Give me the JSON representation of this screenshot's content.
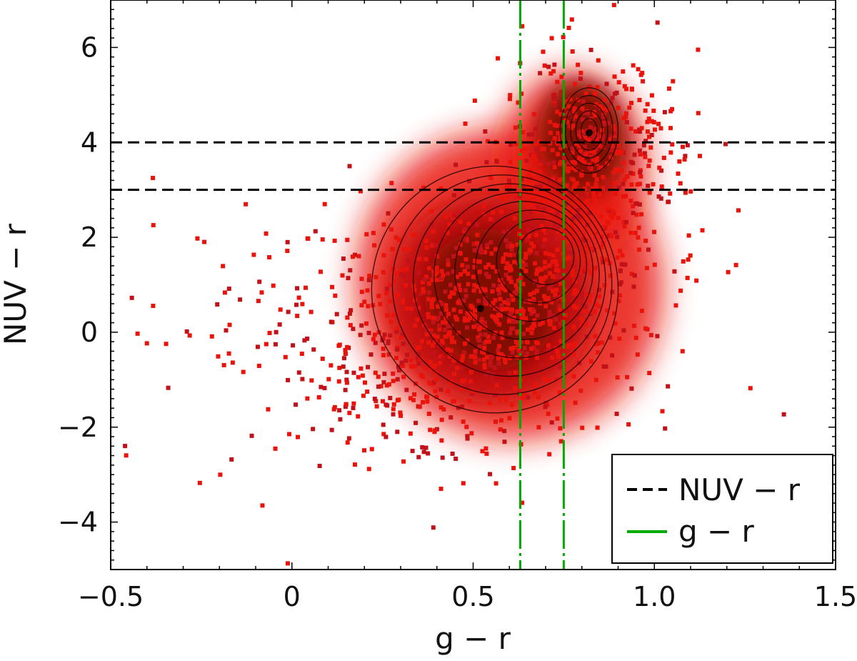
{
  "chart_data": {
    "type": "scatter",
    "title": "",
    "xlabel": "g − r",
    "ylabel": "NUV − r",
    "xlim": [
      -0.5,
      1.5
    ],
    "ylim": [
      -5,
      7
    ],
    "xticks": [
      {
        "value": -0.5,
        "label": "−0.5"
      },
      {
        "value": 0,
        "label": "0"
      },
      {
        "value": 0.5,
        "label": "0.5"
      },
      {
        "value": 1.0,
        "label": "1.0"
      },
      {
        "value": 1.5,
        "label": "1.5"
      }
    ],
    "yticks": [
      {
        "value": -4,
        "label": "−4"
      },
      {
        "value": -2,
        "label": "−2"
      },
      {
        "value": 0,
        "label": "0"
      },
      {
        "value": 2,
        "label": "2"
      },
      {
        "value": 4,
        "label": "4"
      },
      {
        "value": 6,
        "label": "6"
      }
    ],
    "density_peaks": [
      {
        "x": 0.52,
        "y": 0.5
      },
      {
        "x": 0.82,
        "y": 4.2
      }
    ],
    "reference_lines": [
      {
        "orientation": "horizontal",
        "value": 3.0,
        "style": "dashed",
        "color": "#000000",
        "series": "NUV − r"
      },
      {
        "orientation": "horizontal",
        "value": 4.0,
        "style": "dashed",
        "color": "#000000",
        "series": "NUV − r"
      },
      {
        "orientation": "vertical",
        "value": 0.63,
        "style": "dash-dot",
        "color": "#00aa00",
        "series": "g − r"
      },
      {
        "orientation": "vertical",
        "value": 0.75,
        "style": "dash-dot",
        "color": "#00aa00",
        "series": "g − r"
      }
    ],
    "legend": {
      "placement": "bottom-right",
      "entries": [
        {
          "label": "NUV − r",
          "style": "dashed",
          "color": "#000000"
        },
        {
          "label": "g − r",
          "style": "solid",
          "color": "#00aa00"
        }
      ]
    },
    "colors": {
      "points": "#e8140c",
      "points_dense": "#7a0a05",
      "contours": "#1a0000",
      "frame": "#000000"
    },
    "grid": false
  }
}
